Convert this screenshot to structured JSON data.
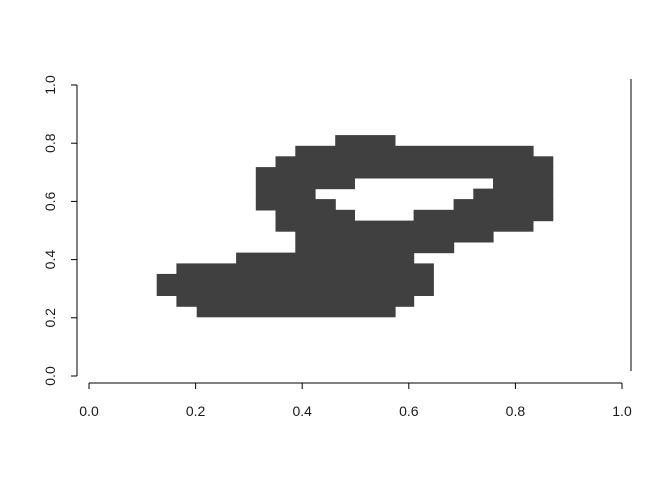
{
  "chart_data": {
    "type": "heatmap",
    "title": "",
    "xlabel": "",
    "ylabel": "",
    "xlim": [
      0,
      1
    ],
    "ylim": [
      0,
      1
    ],
    "x_ticks": [
      "0.0",
      "0.2",
      "0.4",
      "0.6",
      "0.8",
      "1.0"
    ],
    "y_ticks": [
      "0.0",
      "0.2",
      "0.4",
      "0.6",
      "0.8",
      "1.0"
    ],
    "grid": false,
    "colors": {
      "ink": "#404040",
      "background": "#ffffff",
      "axis": "#000000"
    },
    "cell_size": 0.037,
    "rows": [
      {
        "y_range": [
          0.791,
          0.828
        ],
        "x_ranges": [
          [
            0.462,
            0.574
          ]
        ]
      },
      {
        "y_range": [
          0.755,
          0.791
        ],
        "x_ranges": [
          [
            0.387,
            0.833
          ]
        ]
      },
      {
        "y_range": [
          0.718,
          0.755
        ],
        "x_ranges": [
          [
            0.35,
            0.87
          ]
        ]
      },
      {
        "y_range": [
          0.681,
          0.718
        ],
        "x_ranges": [
          [
            0.313,
            0.87
          ]
        ]
      },
      {
        "y_range": [
          0.644,
          0.681
        ],
        "x_ranges": [
          [
            0.313,
            0.498
          ],
          [
            0.758,
            0.87
          ]
        ]
      },
      {
        "y_range": [
          0.608,
          0.644
        ],
        "x_ranges": [
          [
            0.313,
            0.424
          ],
          [
            0.721,
            0.87
          ]
        ]
      },
      {
        "y_range": [
          0.571,
          0.608
        ],
        "x_ranges": [
          [
            0.313,
            0.462
          ],
          [
            0.684,
            0.87
          ]
        ]
      },
      {
        "y_range": [
          0.534,
          0.571
        ],
        "x_ranges": [
          [
            0.35,
            0.498
          ],
          [
            0.609,
            0.87
          ]
        ]
      },
      {
        "y_range": [
          0.498,
          0.534
        ],
        "x_ranges": [
          [
            0.35,
            0.833
          ]
        ]
      },
      {
        "y_range": [
          0.461,
          0.498
        ],
        "x_ranges": [
          [
            0.387,
            0.758
          ]
        ]
      },
      {
        "y_range": [
          0.424,
          0.461
        ],
        "x_ranges": [
          [
            0.387,
            0.684
          ]
        ]
      },
      {
        "y_range": [
          0.387,
          0.424
        ],
        "x_ranges": [
          [
            0.276,
            0.609
          ]
        ]
      },
      {
        "y_range": [
          0.351,
          0.387
        ],
        "x_ranges": [
          [
            0.164,
            0.646
          ]
        ]
      },
      {
        "y_range": [
          0.314,
          0.351
        ],
        "x_ranges": [
          [
            0.127,
            0.646
          ]
        ]
      },
      {
        "y_range": [
          0.277,
          0.314
        ],
        "x_ranges": [
          [
            0.127,
            0.646
          ]
        ]
      },
      {
        "y_range": [
          0.24,
          0.277
        ],
        "x_ranges": [
          [
            0.164,
            0.609
          ]
        ]
      },
      {
        "y_range": [
          0.204,
          0.24
        ],
        "x_ranges": [
          [
            0.202,
            0.574
          ]
        ]
      }
    ]
  }
}
